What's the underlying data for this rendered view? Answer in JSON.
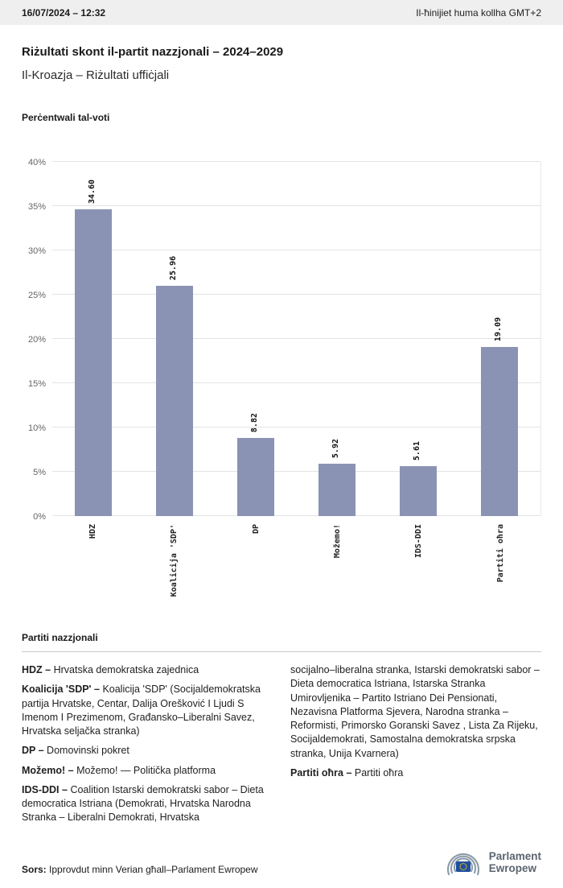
{
  "header": {
    "datetime": "16/07/2024 – 12:32",
    "timezone_note": "Il-ħinijiet huma kollha GMT+2"
  },
  "page": {
    "title": "Riżultati skont il-partit nazzjonali – 2024–2029",
    "subtitle": "Il-Kroazja – Riżultati uffiċjali"
  },
  "chart_data": {
    "type": "bar",
    "title": "Perċentwali tal-voti",
    "categories": [
      "HDZ",
      "Koalicija 'SDP'",
      "DP",
      "Možemo!",
      "IDS-DDI",
      "Partiti oħra"
    ],
    "values": [
      34.6,
      25.96,
      8.82,
      5.92,
      5.61,
      19.09
    ],
    "value_labels": [
      "34.60",
      "25.96",
      "8.82",
      "5.92",
      "5.61",
      "19.09"
    ],
    "xlabel": "",
    "ylabel": "",
    "ylim": [
      0,
      40
    ],
    "ytick_step": 5,
    "ytick_labels": [
      "0%",
      "5%",
      "10%",
      "15%",
      "20%",
      "25%",
      "30%",
      "35%",
      "40%"
    ],
    "bar_color": "#8a93b3",
    "grid": true,
    "legend_position": "none"
  },
  "legend": {
    "heading": "Partiti nazzjonali",
    "columns": [
      [
        {
          "label": "HDZ –",
          "text": "Hrvatska demokratska zajednica"
        },
        {
          "label": "Koalicija 'SDP' –",
          "text": "Koalicija 'SDP' (Socijaldemokratska partija Hrvatske, Centar, Dalija Orešković I Ljudi S Imenom I Prezimenom, Građansko–Liberalni Savez, Hrvatska seljačka stranka)"
        },
        {
          "label": "DP –",
          "text": "Domovinski pokret"
        },
        {
          "label": "Možemo! –",
          "text": "Možemo! — Politička platforma"
        },
        {
          "label": "IDS-DDI –",
          "text": "Coalition Istarski demokratski sabor – Dieta democratica Istriana (Demokrati, Hrvatska Narodna Stranka – Liberalni Demokrati, Hrvatska"
        }
      ],
      [
        {
          "label": "",
          "text": "socijalno–liberalna stranka, Istarski demokratski sabor – Dieta democratica Istriana, Istarska Stranka Umirovljenika – Partito Istriano Dei Pensionati, Nezavisna Platforma Sjevera, Narodna stranka – Reformisti, Primorsko Goranski Savez , Lista Za Rijeku, Socijaldemokrati, Samostalna demokratska srpska stranka, Unija Kvarnera)"
        },
        {
          "label": "Partiti oħra –",
          "text": "Partiti oħra"
        }
      ]
    ]
  },
  "footer": {
    "source_label": "Sors:",
    "source_text": "Ipprovdut minn Verian għall–Parlament Ewropew",
    "logo_line1": "Parlament",
    "logo_line2": "Ewropew"
  },
  "colors": {
    "bar": "#8a93b3",
    "header_bg": "#efefef",
    "flag_blue": "#1e4fa0",
    "star_yellow": "#ffcc00",
    "logo_text": "#5b6570"
  }
}
